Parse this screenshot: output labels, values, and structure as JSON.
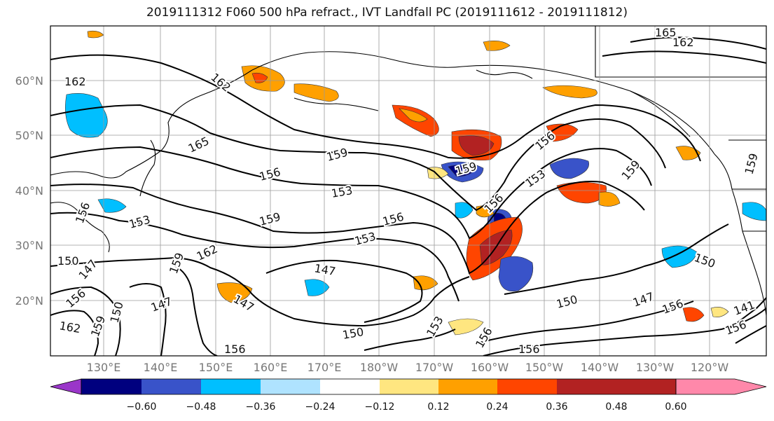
{
  "title": "2019111312 F060 500 hPa refract., IVT Landfall PC (2019111612 - 2019111812)",
  "lat_labels": [
    "60°N",
    "50°N",
    "40°N",
    "30°N",
    "20°N"
  ],
  "lon_labels": [
    "130°E",
    "140°E",
    "150°E",
    "160°E",
    "170°E",
    "180°W",
    "170°W",
    "160°W",
    "150°W",
    "140°W",
    "130°W",
    "120°W"
  ],
  "colorbar": {
    "colors": [
      "#9a36c9",
      "#00007f",
      "#3953c9",
      "#00bfff",
      "#afe3ff",
      "#ffffff",
      "#ffe680",
      "#ffa000",
      "#ff4500",
      "#b22222",
      "#ff88aa"
    ],
    "ticks": [
      "−0.60",
      "−0.48",
      "−0.36",
      "−0.24",
      "−0.12",
      "0.12",
      "0.24",
      "0.36",
      "0.48",
      "0.60"
    ]
  },
  "contour_labels": [
    "162",
    "162",
    "165",
    "162",
    "165",
    "156",
    "159",
    "159",
    "156",
    "153",
    "159",
    "153",
    "156",
    "153",
    "159",
    "156",
    "156",
    "153",
    "162",
    "159",
    "150",
    "147",
    "147",
    "150",
    "150",
    "147",
    "162",
    "159",
    "156",
    "150",
    "156",
    "147",
    "150",
    "147",
    "156",
    "141",
    "156",
    "159",
    "153",
    "156",
    "156"
  ]
}
